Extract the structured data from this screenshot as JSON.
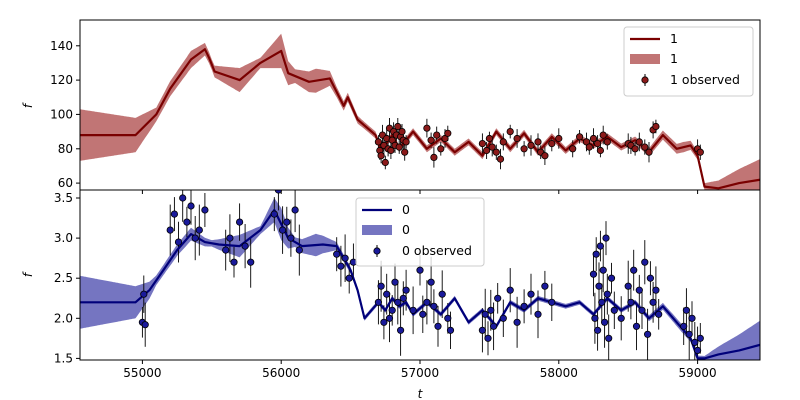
{
  "chart_data": [
    {
      "type": "line",
      "panel": "top",
      "xlabel": "",
      "ylabel": "f",
      "xlim": [
        54550,
        59450
      ],
      "ylim": [
        56,
        155
      ],
      "yticks": [
        60,
        80,
        100,
        120,
        140
      ],
      "legend_position": "top-right",
      "legend": [
        "1",
        "1",
        "1 observed"
      ],
      "colors": {
        "line": "#7a0000",
        "band": "#a63b3b",
        "points": "#8b1a1a"
      },
      "series": [
        {
          "name": "1",
          "x": [
            54550,
            54700,
            54950,
            55100,
            55200,
            55350,
            55450,
            55480,
            55520,
            55700,
            55850,
            56000,
            56050,
            56200,
            56350,
            56450,
            56480,
            56550,
            56680,
            56720,
            56800,
            56850,
            56950,
            57050,
            57150,
            57250,
            57350,
            57450,
            57550,
            57650,
            57750,
            57850,
            57950,
            58050,
            58150,
            58250,
            58350,
            58450,
            58550,
            58650,
            58750,
            58850,
            58950,
            59000,
            59050,
            59150,
            59300,
            59450
          ],
          "y": [
            88,
            88,
            88,
            100,
            115,
            132,
            138,
            133,
            125,
            120,
            130,
            137,
            124,
            119,
            121,
            105,
            110,
            97,
            88,
            79,
            88,
            80,
            90,
            80,
            86,
            78,
            84,
            76,
            90,
            80,
            89,
            78,
            87,
            79,
            86,
            82,
            87,
            81,
            85,
            78,
            88,
            80,
            82,
            76,
            58,
            57,
            60,
            62
          ]
        },
        {
          "name": "1",
          "band_width_x": [
            54550,
            54950,
            55100,
            55350,
            55500,
            55700,
            55850,
            56000,
            56100,
            56250,
            56400,
            56600,
            57000,
            58500,
            58900,
            59050,
            59450
          ],
          "band_width_y": [
            15,
            10,
            4,
            5,
            3,
            7,
            3,
            10,
            4,
            7,
            3,
            2,
            2,
            2,
            3,
            2,
            12
          ]
        },
        {
          "name": "1 observed",
          "x": [
            56700,
            56710,
            56720,
            56730,
            56740,
            56750,
            56760,
            56770,
            56780,
            56790,
            56800,
            56810,
            56820,
            56830,
            56840,
            56850,
            56860,
            56870,
            56880,
            56890,
            56900,
            57050,
            57080,
            57100,
            57120,
            57150,
            57180,
            57200,
            57450,
            57480,
            57500,
            57520,
            57550,
            57580,
            57600,
            57650,
            57700,
            57750,
            57800,
            57850,
            57870,
            57900,
            57950,
            58000,
            58100,
            58150,
            58200,
            58220,
            58250,
            58280,
            58300,
            58320,
            58350,
            58500,
            58520,
            58550,
            58580,
            58620,
            58650,
            58680,
            58700,
            59000,
            59020
          ],
          "y": [
            84,
            79,
            76,
            88,
            82,
            72,
            86,
            80,
            92,
            79,
            85,
            90,
            82,
            88,
            93,
            81,
            87,
            90,
            85,
            78,
            84,
            92,
            85,
            75,
            88,
            80,
            86,
            89,
            83,
            79,
            86,
            81,
            78,
            74,
            84,
            90,
            86,
            80,
            82,
            84,
            78,
            76,
            83,
            86,
            80,
            87,
            84,
            81,
            86,
            83,
            79,
            88,
            84,
            83,
            82,
            80,
            84,
            81,
            78,
            91,
            93,
            80,
            78
          ]
        }
      ]
    },
    {
      "type": "line",
      "panel": "bottom",
      "xlabel": "t",
      "ylabel": "f",
      "xlim": [
        54550,
        59450
      ],
      "ylim": [
        1.48,
        3.6
      ],
      "yticks": [
        1.5,
        2.0,
        2.5,
        3.0,
        3.5
      ],
      "xticks": [
        55000,
        56000,
        57000,
        58000,
        59000
      ],
      "legend_position": "top-center",
      "legend": [
        "0",
        "0",
        "0 observed"
      ],
      "colors": {
        "line": "#00007a",
        "band": "#3b3ba6",
        "points": "#1a1a9b"
      },
      "series": [
        {
          "name": "0",
          "x": [
            54550,
            54700,
            54950,
            55050,
            55150,
            55250,
            55350,
            55450,
            55550,
            55700,
            55850,
            55950,
            56050,
            56150,
            56300,
            56400,
            56450,
            56500,
            56550,
            56600,
            56650,
            56700,
            56750,
            56800,
            56850,
            56900,
            56950,
            57050,
            57150,
            57250,
            57350,
            57450,
            57550,
            57650,
            57750,
            57850,
            57950,
            58050,
            58150,
            58250,
            58350,
            58450,
            58550,
            58650,
            58750,
            58850,
            58950,
            59000,
            59050,
            59150,
            59300,
            59450
          ],
          "y": [
            2.2,
            2.2,
            2.2,
            2.35,
            2.6,
            2.85,
            3.05,
            2.95,
            2.92,
            2.9,
            3.1,
            3.35,
            3.0,
            2.9,
            2.92,
            2.9,
            2.75,
            2.6,
            2.35,
            2.0,
            2.1,
            2.2,
            2.1,
            2.25,
            2.15,
            2.2,
            2.05,
            2.2,
            2.05,
            2.25,
            1.95,
            2.1,
            1.9,
            2.2,
            2.1,
            2.25,
            2.2,
            2.15,
            2.2,
            2.05,
            2.25,
            2.1,
            2.2,
            2.0,
            2.15,
            1.95,
            1.75,
            1.5,
            1.5,
            1.55,
            1.6,
            1.67
          ]
        },
        {
          "name": "0",
          "band_width_x": [
            54550,
            54950,
            55100,
            55350,
            55500,
            55700,
            55850,
            56000,
            56100,
            56250,
            56400,
            56600,
            57000,
            58500,
            58900,
            59050,
            59450
          ],
          "band_width_y": [
            0.33,
            0.2,
            0.06,
            0.08,
            0.04,
            0.14,
            0.05,
            0.2,
            0.06,
            0.14,
            0.05,
            0.03,
            0.03,
            0.03,
            0.05,
            0.03,
            0.3
          ]
        },
        {
          "name": "0 observed",
          "x": [
            55000,
            55010,
            55020,
            55200,
            55230,
            55260,
            55290,
            55320,
            55350,
            55380,
            55410,
            55450,
            55600,
            55630,
            55660,
            55700,
            55740,
            55780,
            55950,
            55980,
            56010,
            56040,
            56070,
            56100,
            56130,
            56400,
            56430,
            56460,
            56490,
            56520,
            56700,
            56720,
            56740,
            56760,
            56780,
            56800,
            56820,
            56840,
            56860,
            56880,
            56900,
            56950,
            57000,
            57020,
            57050,
            57080,
            57100,
            57130,
            57160,
            57200,
            57220,
            57450,
            57470,
            57490,
            57510,
            57530,
            57560,
            57600,
            57650,
            57700,
            57750,
            57800,
            57850,
            57900,
            57950,
            58250,
            58260,
            58270,
            58280,
            58290,
            58300,
            58310,
            58320,
            58330,
            58340,
            58350,
            58360,
            58380,
            58400,
            58450,
            58500,
            58520,
            58540,
            58560,
            58580,
            58600,
            58620,
            58640,
            58660,
            58680,
            58700,
            58720,
            58900,
            58920,
            58940,
            58960,
            58980,
            59000,
            59020
          ],
          "y": [
            1.95,
            2.3,
            1.92,
            3.1,
            3.3,
            2.95,
            3.5,
            3.2,
            3.4,
            3.0,
            3.1,
            3.35,
            2.85,
            3.0,
            2.7,
            3.2,
            2.9,
            2.7,
            3.3,
            3.6,
            3.1,
            3.2,
            3.0,
            3.35,
            2.85,
            2.8,
            2.65,
            2.75,
            2.5,
            2.7,
            2.2,
            2.4,
            1.95,
            2.3,
            2.0,
            2.1,
            2.45,
            2.2,
            1.85,
            2.25,
            2.35,
            2.1,
            2.6,
            2.05,
            2.2,
            2.45,
            2.15,
            1.9,
            2.3,
            2.0,
            1.85,
            1.85,
            2.05,
            1.75,
            2.1,
            1.9,
            2.25,
            2.0,
            2.35,
            1.95,
            2.15,
            2.3,
            2.05,
            2.4,
            2.2,
            2.55,
            2.0,
            2.8,
            1.85,
            2.4,
            2.9,
            2.2,
            2.6,
            1.95,
            3.0,
            2.3,
            1.75,
            2.5,
            2.1,
            2.0,
            2.4,
            2.2,
            2.6,
            1.9,
            2.35,
            2.1,
            2.7,
            1.8,
            2.5,
            2.2,
            2.35,
            2.05,
            1.9,
            2.1,
            1.8,
            2.0,
            1.7,
            1.6,
            1.75
          ]
        }
      ]
    }
  ]
}
